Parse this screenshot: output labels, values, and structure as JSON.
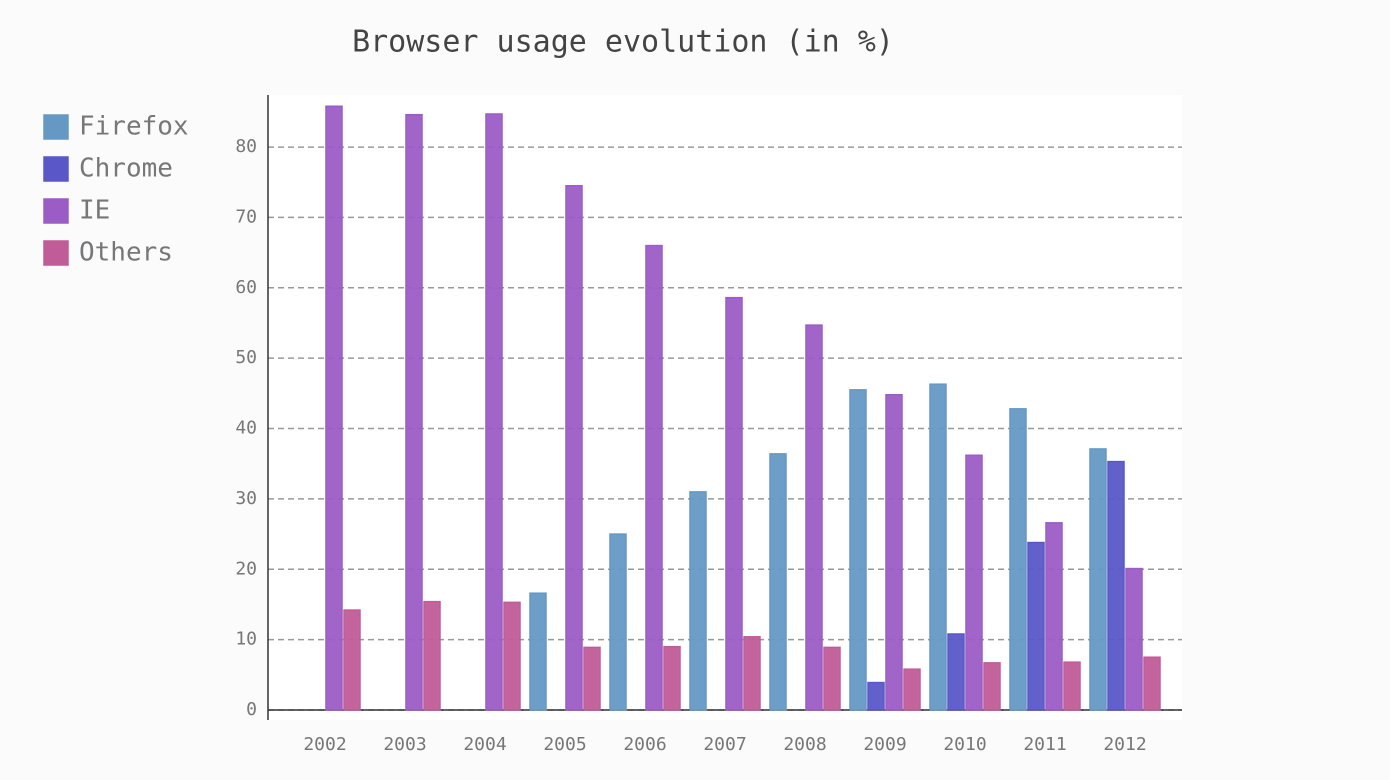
{
  "chart_data": {
    "type": "bar",
    "title": "Browser usage evolution (in %)",
    "categories": [
      "2002",
      "2003",
      "2004",
      "2005",
      "2006",
      "2007",
      "2008",
      "2009",
      "2010",
      "2011",
      "2012"
    ],
    "series": [
      {
        "name": "Firefox",
        "color": "#6599c4",
        "values": [
          null,
          null,
          0,
          16.6,
          25,
          31,
          36.4,
          45.5,
          46.3,
          42.8,
          37.1
        ]
      },
      {
        "name": "Chrome",
        "color": "#5a58c8",
        "values": [
          null,
          null,
          null,
          null,
          null,
          null,
          0,
          3.9,
          10.8,
          23.8,
          35.3
        ]
      },
      {
        "name": "IE",
        "color": "#9c5cc6",
        "values": [
          85.8,
          84.6,
          84.7,
          74.5,
          66,
          58.6,
          54.7,
          44.8,
          36.2,
          26.6,
          20.1
        ]
      },
      {
        "name": "Others",
        "color": "#c05c97",
        "values": [
          14.2,
          15.4,
          15.3,
          8.9,
          9,
          10.4,
          8.9,
          5.8,
          6.7,
          6.8,
          7.5
        ]
      }
    ],
    "ylim": [
      0,
      87.4
    ],
    "yticks": [
      0,
      10,
      20,
      30,
      40,
      50,
      60,
      70,
      80
    ],
    "grid": true,
    "legend": "left"
  }
}
